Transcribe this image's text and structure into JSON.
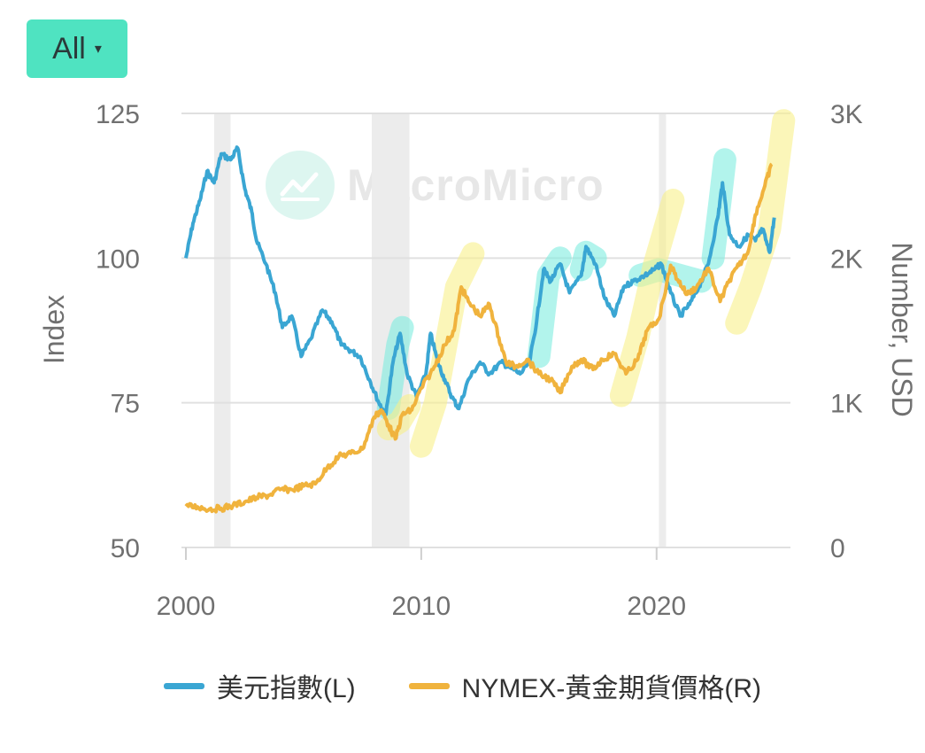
{
  "range_button": {
    "label": "All",
    "caret": "▾"
  },
  "watermark": {
    "text": "MacroMicro",
    "icon": "chart-logo-icon"
  },
  "colors": {
    "dollar": "#3aa6d3",
    "gold": "#f0b33d",
    "recession": "#ececec",
    "grid": "#e0e0e0",
    "highlight_cyan": "#7fece0",
    "highlight_yellow": "#f9f08a"
  },
  "chart_data": {
    "type": "line",
    "title": "",
    "xlabel": "",
    "ylabel_left": "Index",
    "ylabel_right": "Number, USD",
    "x_range": [
      2000,
      2025.5
    ],
    "x_ticks": [
      {
        "value": 2000,
        "label": "2000"
      },
      {
        "value": 2010,
        "label": "2010"
      },
      {
        "value": 2020,
        "label": "2020"
      }
    ],
    "y_left_range": [
      50,
      125
    ],
    "y_left_ticks": [
      {
        "value": 125,
        "label": "125"
      },
      {
        "value": 100,
        "label": "100"
      },
      {
        "value": 75,
        "label": "75"
      },
      {
        "value": 50,
        "label": "50"
      }
    ],
    "y_right_range": [
      0,
      3000
    ],
    "y_right_ticks": [
      {
        "value": 3000,
        "label": "3K"
      },
      {
        "value": 2000,
        "label": "2K"
      },
      {
        "value": 1000,
        "label": "1K"
      },
      {
        "value": 0,
        "label": "0"
      }
    ],
    "recessions": [
      [
        2001.2,
        2001.9
      ],
      [
        2007.9,
        2009.5
      ],
      [
        2020.1,
        2020.4
      ]
    ],
    "series": [
      {
        "name": "美元指數(L)",
        "axis": "left",
        "points": [
          [
            2000.0,
            100
          ],
          [
            2000.3,
            106
          ],
          [
            2000.6,
            110
          ],
          [
            2000.9,
            115
          ],
          [
            2001.2,
            113
          ],
          [
            2001.5,
            118
          ],
          [
            2001.9,
            117
          ],
          [
            2002.2,
            119
          ],
          [
            2002.5,
            112
          ],
          [
            2002.8,
            108
          ],
          [
            2003.0,
            103
          ],
          [
            2003.4,
            99
          ],
          [
            2003.8,
            94
          ],
          [
            2004.1,
            88
          ],
          [
            2004.5,
            90
          ],
          [
            2004.9,
            83
          ],
          [
            2005.3,
            86
          ],
          [
            2005.8,
            91
          ],
          [
            2006.2,
            89
          ],
          [
            2006.6,
            85
          ],
          [
            2007.0,
            84
          ],
          [
            2007.4,
            83
          ],
          [
            2007.8,
            79
          ],
          [
            2008.2,
            75
          ],
          [
            2008.5,
            73
          ],
          [
            2008.8,
            82
          ],
          [
            2009.1,
            87
          ],
          [
            2009.4,
            80
          ],
          [
            2009.8,
            76
          ],
          [
            2010.2,
            80
          ],
          [
            2010.4,
            87
          ],
          [
            2010.7,
            82
          ],
          [
            2011.0,
            79
          ],
          [
            2011.3,
            76
          ],
          [
            2011.6,
            74
          ],
          [
            2012.0,
            79
          ],
          [
            2012.5,
            82
          ],
          [
            2012.9,
            80
          ],
          [
            2013.4,
            82
          ],
          [
            2013.8,
            81
          ],
          [
            2014.2,
            80
          ],
          [
            2014.6,
            82
          ],
          [
            2014.9,
            89
          ],
          [
            2015.2,
            98
          ],
          [
            2015.5,
            96
          ],
          [
            2015.9,
            99
          ],
          [
            2016.3,
            94
          ],
          [
            2016.8,
            97
          ],
          [
            2017.0,
            102
          ],
          [
            2017.4,
            99
          ],
          [
            2017.8,
            93
          ],
          [
            2018.2,
            90
          ],
          [
            2018.6,
            95
          ],
          [
            2019.0,
            96
          ],
          [
            2019.5,
            97
          ],
          [
            2019.9,
            98
          ],
          [
            2020.2,
            99
          ],
          [
            2020.6,
            94
          ],
          [
            2021.0,
            90
          ],
          [
            2021.4,
            92
          ],
          [
            2021.8,
            95
          ],
          [
            2022.2,
            99
          ],
          [
            2022.6,
            107
          ],
          [
            2022.8,
            113
          ],
          [
            2023.1,
            104
          ],
          [
            2023.5,
            102
          ],
          [
            2023.9,
            104
          ],
          [
            2024.2,
            103
          ],
          [
            2024.5,
            105
          ],
          [
            2024.8,
            101
          ],
          [
            2025.0,
            107
          ]
        ]
      },
      {
        "name": "NYMEX-黃金期貨價格(R)",
        "axis": "right",
        "points": [
          [
            2000.0,
            285
          ],
          [
            2000.5,
            280
          ],
          [
            2001.0,
            265
          ],
          [
            2001.5,
            270
          ],
          [
            2002.0,
            290
          ],
          [
            2002.5,
            315
          ],
          [
            2003.0,
            345
          ],
          [
            2003.5,
            360
          ],
          [
            2004.0,
            400
          ],
          [
            2004.5,
            400
          ],
          [
            2005.0,
            425
          ],
          [
            2005.5,
            440
          ],
          [
            2006.0,
            550
          ],
          [
            2006.5,
            630
          ],
          [
            2007.0,
            650
          ],
          [
            2007.5,
            680
          ],
          [
            2008.0,
            900
          ],
          [
            2008.3,
            950
          ],
          [
            2008.6,
            850
          ],
          [
            2008.9,
            750
          ],
          [
            2009.2,
            920
          ],
          [
            2009.6,
            950
          ],
          [
            2010.0,
            1100
          ],
          [
            2010.5,
            1230
          ],
          [
            2011.0,
            1400
          ],
          [
            2011.4,
            1500
          ],
          [
            2011.7,
            1800
          ],
          [
            2012.0,
            1700
          ],
          [
            2012.5,
            1600
          ],
          [
            2012.9,
            1680
          ],
          [
            2013.3,
            1450
          ],
          [
            2013.6,
            1280
          ],
          [
            2014.0,
            1250
          ],
          [
            2014.5,
            1300
          ],
          [
            2015.0,
            1200
          ],
          [
            2015.5,
            1160
          ],
          [
            2015.9,
            1070
          ],
          [
            2016.4,
            1250
          ],
          [
            2016.8,
            1300
          ],
          [
            2017.3,
            1230
          ],
          [
            2017.7,
            1300
          ],
          [
            2018.2,
            1340
          ],
          [
            2018.7,
            1200
          ],
          [
            2019.2,
            1300
          ],
          [
            2019.6,
            1500
          ],
          [
            2020.1,
            1580
          ],
          [
            2020.6,
            1950
          ],
          [
            2020.9,
            1850
          ],
          [
            2021.3,
            1750
          ],
          [
            2021.7,
            1800
          ],
          [
            2022.2,
            1930
          ],
          [
            2022.7,
            1700
          ],
          [
            2023.1,
            1850
          ],
          [
            2023.5,
            1950
          ],
          [
            2023.9,
            2050
          ],
          [
            2024.2,
            2300
          ],
          [
            2024.6,
            2500
          ],
          [
            2024.9,
            2650
          ]
        ]
      }
    ],
    "annotations": [
      {
        "type": "highlight",
        "color": "cyan",
        "points": [
          [
            2008.6,
            74
          ],
          [
            2009.0,
            85
          ],
          [
            2009.2,
            88
          ]
        ]
      },
      {
        "type": "highlight",
        "color": "cyan",
        "points": [
          [
            2015.0,
            83
          ],
          [
            2015.4,
            97
          ],
          [
            2015.9,
            100
          ]
        ]
      },
      {
        "type": "highlight",
        "color": "cyan",
        "points": [
          [
            2016.8,
            98
          ],
          [
            2017.0,
            101
          ],
          [
            2017.4,
            100
          ]
        ]
      },
      {
        "type": "highlight",
        "color": "cyan",
        "points": [
          [
            2022.4,
            100
          ],
          [
            2022.7,
            110
          ],
          [
            2022.9,
            117
          ]
        ]
      },
      {
        "type": "highlight",
        "color": "cyan",
        "points": [
          [
            2019.3,
            97
          ],
          [
            2020.1,
            98
          ],
          [
            2021.9,
            96
          ]
        ]
      },
      {
        "type": "highlight",
        "color": "yellow",
        "axis": "right",
        "points": [
          [
            2010.0,
            700
          ],
          [
            2010.6,
            1000
          ],
          [
            2011.5,
            1800
          ],
          [
            2012.2,
            2030
          ]
        ]
      },
      {
        "type": "highlight",
        "color": "yellow",
        "axis": "right",
        "points": [
          [
            2018.5,
            1050
          ],
          [
            2019.2,
            1450
          ],
          [
            2019.9,
            1950
          ],
          [
            2020.7,
            2400
          ]
        ]
      },
      {
        "type": "highlight",
        "color": "yellow",
        "axis": "right",
        "points": [
          [
            2023.4,
            1550
          ],
          [
            2024.0,
            1800
          ],
          [
            2024.8,
            2200
          ],
          [
            2025.4,
            2950
          ]
        ]
      },
      {
        "type": "highlight",
        "color": "yellow",
        "axis": "right",
        "points": [
          [
            2008.6,
            820
          ],
          [
            2009.1,
            870
          ],
          [
            2009.5,
            980
          ]
        ]
      }
    ]
  },
  "legend": [
    {
      "label": "美元指數(L)",
      "color": "#3aa6d3"
    },
    {
      "label": "NYMEX-黃金期貨價格(R)",
      "color": "#f0b33d"
    }
  ]
}
